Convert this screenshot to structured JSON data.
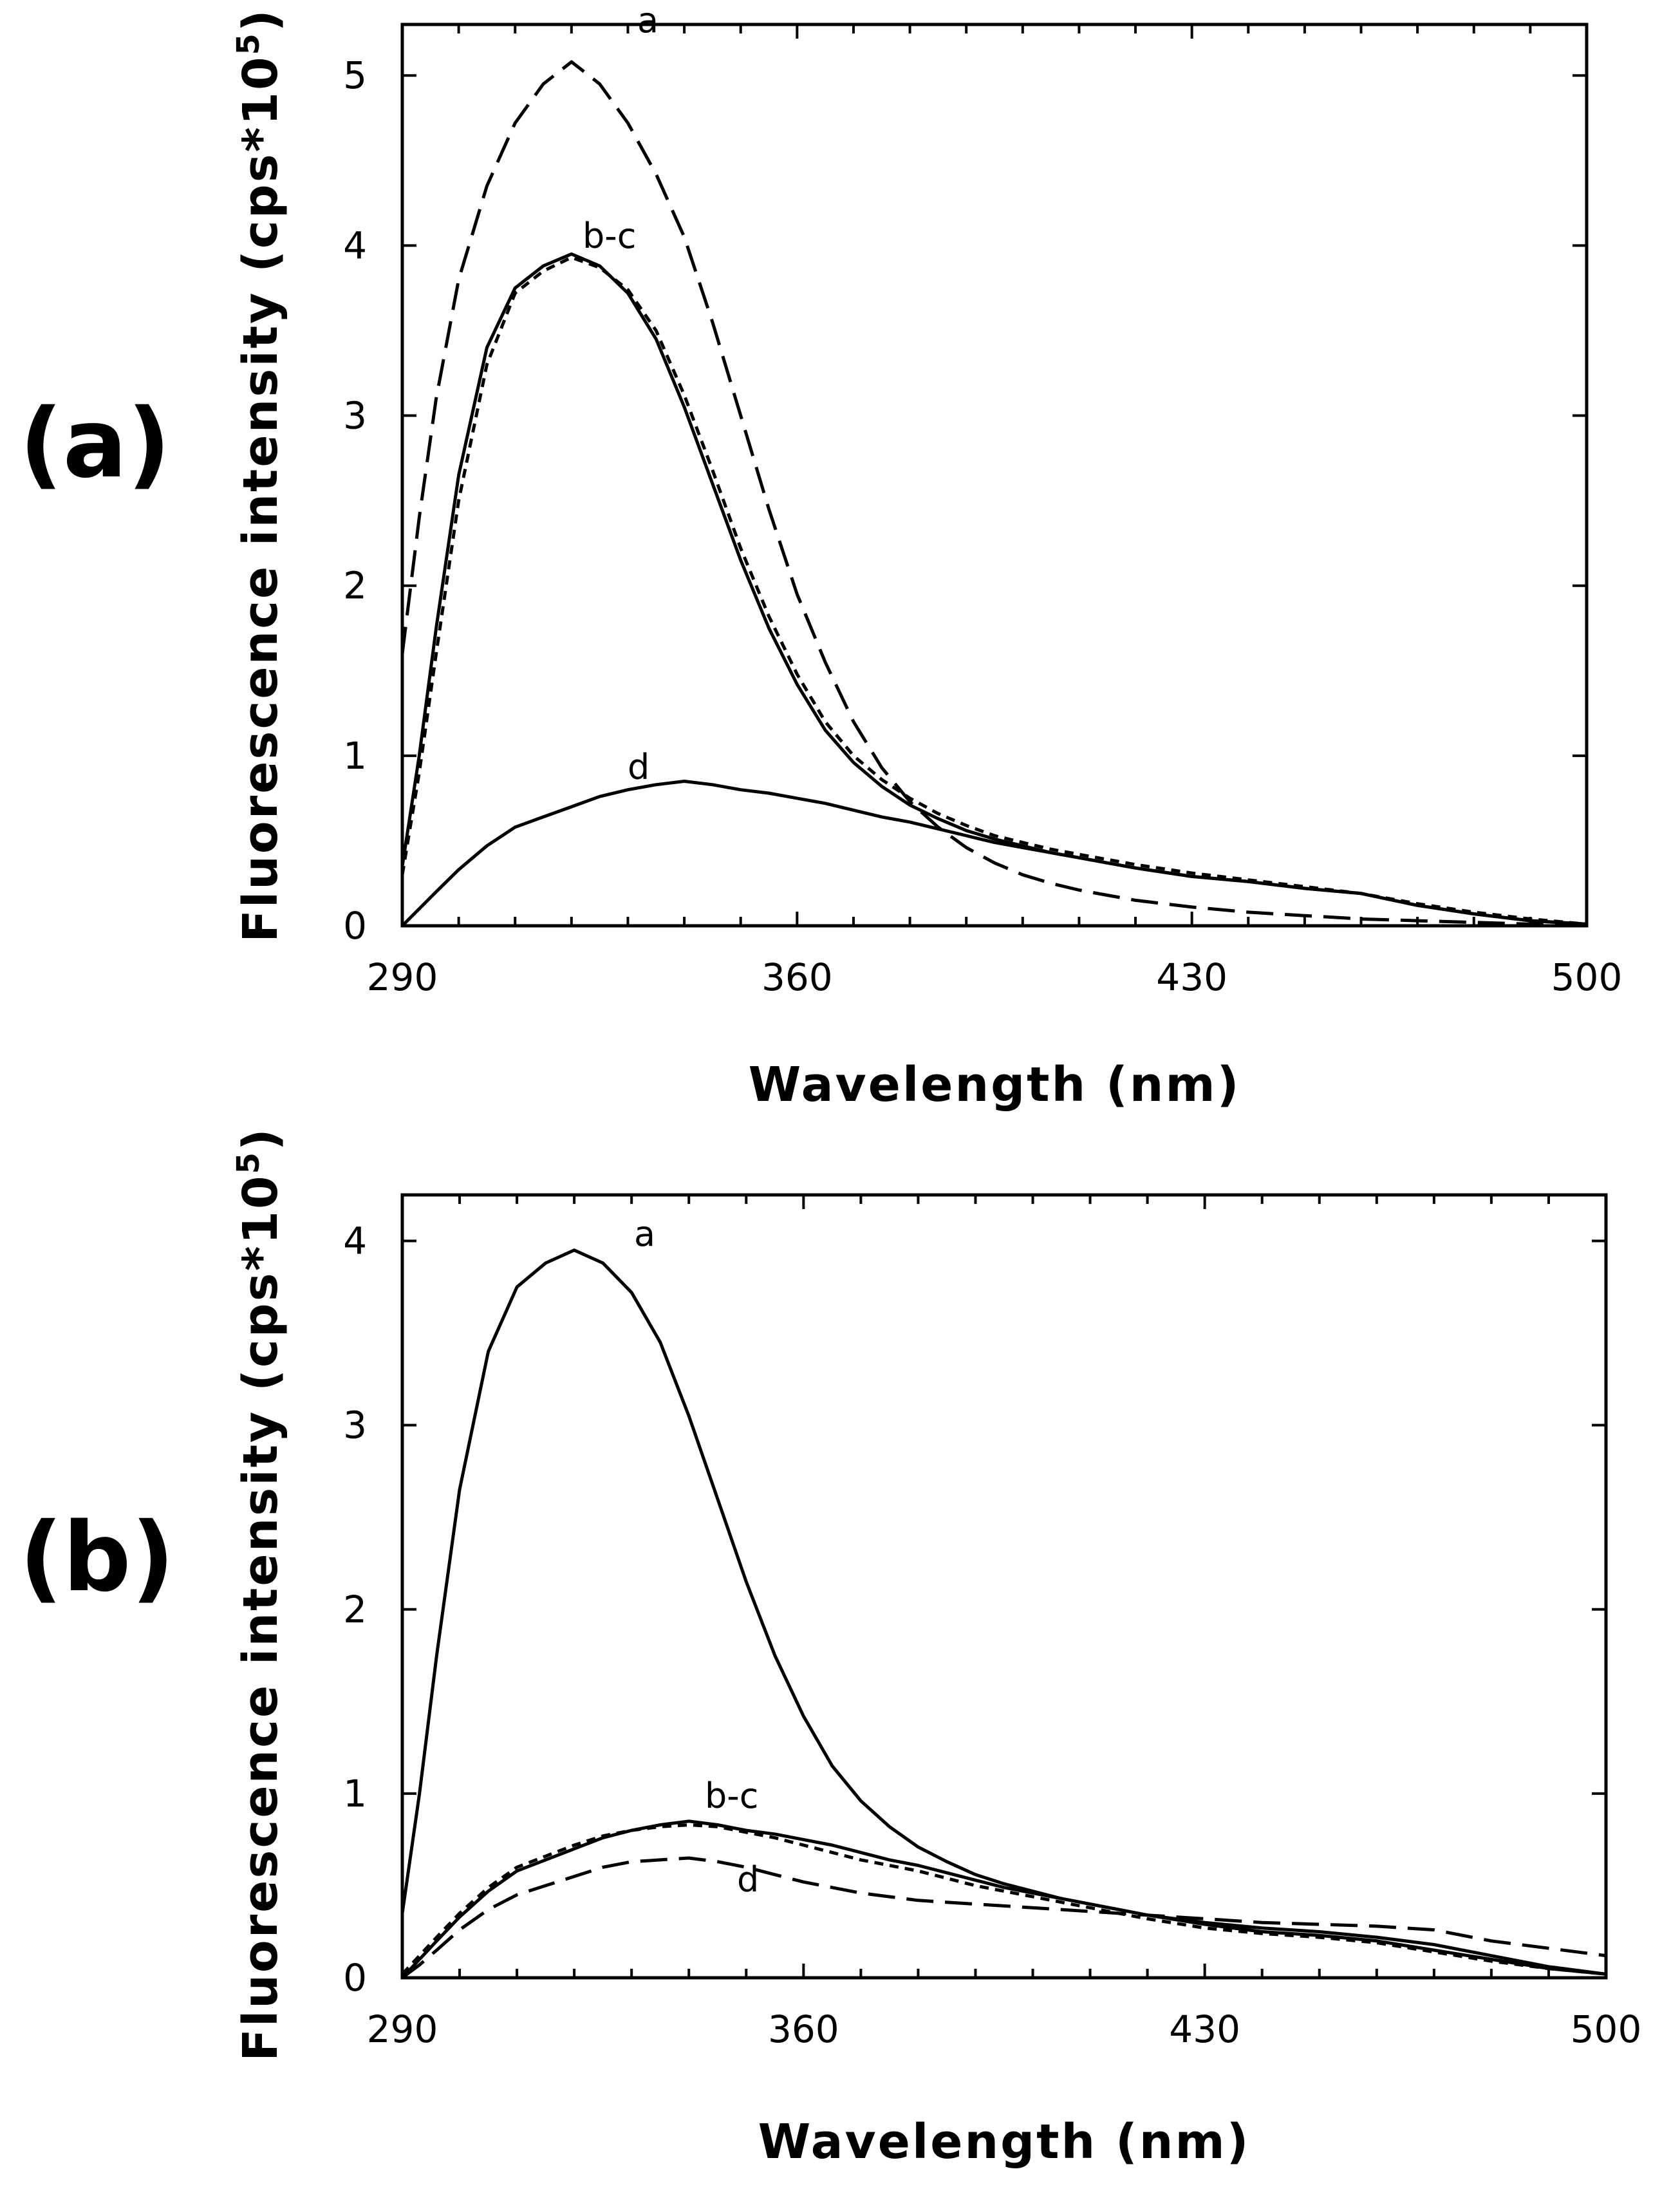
{
  "figure": {
    "panels": [
      "(a)",
      "(b)"
    ]
  },
  "chart_data": [
    {
      "type": "line",
      "panel_label": "(a)",
      "xlabel": "Wavelength (nm)",
      "ylabel": "Fluorescence intensity (cps*10",
      "ylabel_sup": "5",
      "ylabel_close": ")",
      "xlim": [
        290,
        500
      ],
      "ylim": [
        0,
        5.3
      ],
      "xticks": [
        290,
        360,
        430,
        500
      ],
      "yticks": [
        0,
        1,
        2,
        3,
        4,
        5
      ],
      "x": [
        290,
        293,
        296,
        300,
        305,
        310,
        315,
        320,
        325,
        330,
        335,
        340,
        345,
        350,
        355,
        360,
        365,
        370,
        375,
        380,
        385,
        390,
        395,
        400,
        405,
        410,
        415,
        420,
        430,
        440,
        450,
        460,
        470,
        480,
        490,
        500
      ],
      "series": [
        {
          "name": "a",
          "style": "long-dash",
          "label_x": 332,
          "label_y": 5.22,
          "values": [
            1.6,
            2.4,
            3.1,
            3.8,
            4.35,
            4.72,
            4.95,
            5.08,
            4.95,
            4.72,
            4.42,
            4.05,
            3.55,
            3.0,
            2.45,
            1.95,
            1.55,
            1.2,
            0.93,
            0.73,
            0.58,
            0.46,
            0.37,
            0.3,
            0.25,
            0.21,
            0.18,
            0.15,
            0.11,
            0.08,
            0.06,
            0.04,
            0.03,
            0.02,
            0.01,
            0.005
          ]
        },
        {
          "name": "b",
          "style": "solid",
          "label_x": 331,
          "label_y": 4.03,
          "values": [
            0.35,
            1.0,
            1.75,
            2.65,
            3.4,
            3.75,
            3.88,
            3.95,
            3.88,
            3.72,
            3.45,
            3.05,
            2.6,
            2.15,
            1.75,
            1.42,
            1.15,
            0.96,
            0.82,
            0.71,
            0.63,
            0.56,
            0.51,
            0.47,
            0.43,
            0.4,
            0.37,
            0.34,
            0.29,
            0.26,
            0.22,
            0.19,
            0.12,
            0.07,
            0.03,
            0.01
          ]
        },
        {
          "name": "c",
          "style": "short-dash",
          "label_x": null,
          "label_y": null,
          "values": [
            0.3,
            0.9,
            1.6,
            2.5,
            3.3,
            3.72,
            3.85,
            3.93,
            3.87,
            3.74,
            3.5,
            3.12,
            2.68,
            2.22,
            1.82,
            1.48,
            1.2,
            1.0,
            0.86,
            0.75,
            0.66,
            0.59,
            0.53,
            0.49,
            0.45,
            0.42,
            0.39,
            0.36,
            0.31,
            0.27,
            0.23,
            0.19,
            0.13,
            0.08,
            0.04,
            0.01
          ]
        },
        {
          "name": "d",
          "style": "solid",
          "label_x": null,
          "label_y": 0.85,
          "values": [
            0.0,
            0.1,
            0.2,
            0.33,
            0.47,
            0.58,
            0.64,
            0.7,
            0.76,
            0.8,
            0.83,
            0.85,
            0.83,
            0.8,
            0.78,
            0.75,
            0.72,
            0.68,
            0.64,
            0.61,
            0.57,
            0.53,
            0.49,
            0.46,
            0.43,
            0.4,
            0.37,
            0.34,
            0.29,
            0.26,
            0.22,
            0.19,
            0.12,
            0.07,
            0.03,
            0.01
          ]
        }
      ],
      "annotations": [
        "a",
        "b-c",
        "d"
      ]
    },
    {
      "type": "line",
      "panel_label": "(b)",
      "xlabel": "Wavelength (nm)",
      "ylabel": "Fluorescence intensity (cps*10",
      "ylabel_sup": "5",
      "ylabel_close": ")",
      "xlim": [
        290,
        500
      ],
      "ylim": [
        0,
        4.25
      ],
      "xticks": [
        290,
        360,
        430,
        500
      ],
      "yticks": [
        0,
        1,
        2,
        3,
        4
      ],
      "x": [
        290,
        293,
        296,
        300,
        305,
        310,
        315,
        320,
        325,
        330,
        335,
        340,
        345,
        350,
        355,
        360,
        365,
        370,
        375,
        380,
        385,
        390,
        395,
        400,
        405,
        410,
        415,
        420,
        430,
        440,
        450,
        460,
        470,
        480,
        490,
        500
      ],
      "series": [
        {
          "name": "a",
          "style": "solid",
          "label_x": 331,
          "label_y": 4.03,
          "values": [
            0.35,
            1.0,
            1.75,
            2.65,
            3.4,
            3.75,
            3.88,
            3.95,
            3.88,
            3.72,
            3.45,
            3.05,
            2.6,
            2.15,
            1.75,
            1.42,
            1.15,
            0.96,
            0.82,
            0.71,
            0.63,
            0.56,
            0.51,
            0.47,
            0.43,
            0.4,
            0.37,
            0.34,
            0.3,
            0.27,
            0.25,
            0.22,
            0.18,
            0.12,
            0.06,
            0.02
          ]
        },
        {
          "name": "b",
          "style": "solid",
          "label_x": 351,
          "label_y": 0.98,
          "values": [
            0.0,
            0.1,
            0.2,
            0.33,
            0.47,
            0.58,
            0.64,
            0.7,
            0.76,
            0.8,
            0.83,
            0.85,
            0.83,
            0.8,
            0.78,
            0.75,
            0.72,
            0.68,
            0.64,
            0.61,
            0.57,
            0.53,
            0.49,
            0.46,
            0.43,
            0.4,
            0.37,
            0.34,
            0.29,
            0.25,
            0.23,
            0.2,
            0.15,
            0.1,
            0.05,
            0.02
          ]
        },
        {
          "name": "c",
          "style": "short-dash",
          "label_x": null,
          "label_y": null,
          "values": [
            0.02,
            0.12,
            0.22,
            0.35,
            0.49,
            0.6,
            0.66,
            0.72,
            0.77,
            0.8,
            0.82,
            0.83,
            0.82,
            0.79,
            0.76,
            0.72,
            0.68,
            0.64,
            0.61,
            0.58,
            0.54,
            0.5,
            0.47,
            0.44,
            0.41,
            0.38,
            0.35,
            0.32,
            0.27,
            0.24,
            0.22,
            0.19,
            0.14,
            0.09,
            0.05,
            0.02
          ]
        },
        {
          "name": "d",
          "style": "long-dash",
          "label_x": 353,
          "label_y": 0.5,
          "values": [
            0.0,
            0.07,
            0.15,
            0.26,
            0.37,
            0.45,
            0.5,
            0.55,
            0.6,
            0.63,
            0.64,
            0.65,
            0.63,
            0.6,
            0.56,
            0.52,
            0.49,
            0.46,
            0.44,
            0.42,
            0.41,
            0.4,
            0.39,
            0.38,
            0.37,
            0.36,
            0.35,
            0.34,
            0.32,
            0.3,
            0.29,
            0.28,
            0.26,
            0.2,
            0.16,
            0.12
          ]
        }
      ],
      "annotations": [
        "a",
        "b-c",
        "d"
      ]
    }
  ]
}
